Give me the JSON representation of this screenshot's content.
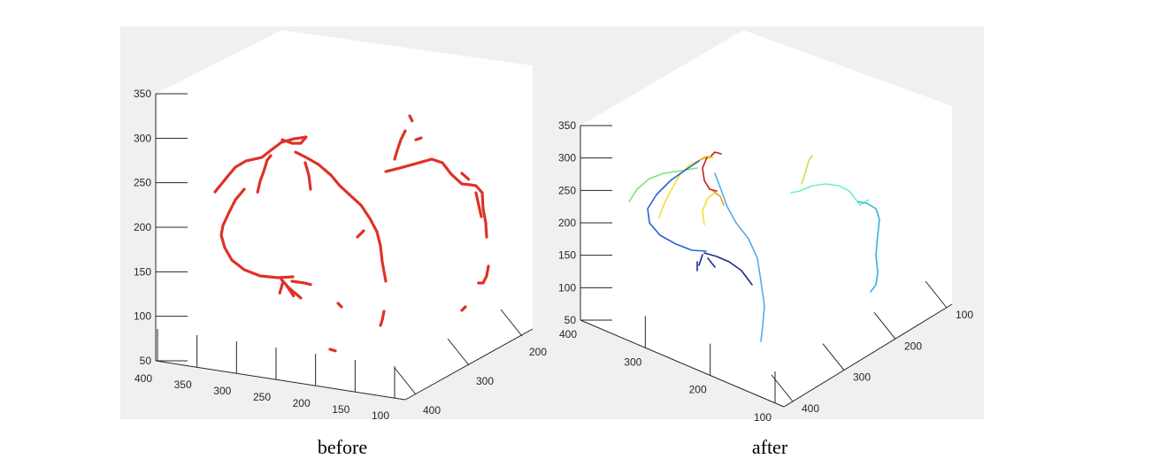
{
  "captions": {
    "left": "before",
    "right": "after"
  },
  "colors": {
    "figure_background": "#f0f0f0",
    "axes_background": "#ffffff",
    "before_vessels": "#e03026"
  },
  "chart_data": [
    {
      "type": "scatter",
      "view": "3d",
      "caption": "before",
      "title": "",
      "zlim": [
        50,
        350
      ],
      "zticks": [
        "350",
        "300",
        "250",
        "200",
        "150",
        "100",
        "50"
      ],
      "xticks": [
        "400",
        "350",
        "300",
        "250",
        "200",
        "150",
        "100"
      ],
      "yticks": [
        "200",
        "300",
        "400"
      ],
      "series": [
        {
          "color": "#e03026",
          "description": "segmented vessel centerline points (single color)"
        }
      ]
    },
    {
      "type": "line",
      "view": "3d",
      "caption": "after",
      "title": "",
      "zlim": [
        50,
        350
      ],
      "zticks": [
        "350",
        "300",
        "250",
        "200",
        "150",
        "100",
        "50"
      ],
      "xticks": [
        "400",
        "300",
        "200",
        "100"
      ],
      "yticks": [
        "100",
        "200",
        "300",
        "400"
      ],
      "series": [
        {
          "color": "#7fe07a"
        },
        {
          "color": "#f0e030"
        },
        {
          "color": "#e8a020"
        },
        {
          "color": "#c02018"
        },
        {
          "color": "#2a5fd8"
        },
        {
          "color": "#5aa8e8"
        },
        {
          "color": "#1a2a90"
        },
        {
          "color": "#b8e84a"
        },
        {
          "color": "#6ef0c8"
        },
        {
          "color": "#38b0e8"
        }
      ]
    }
  ]
}
